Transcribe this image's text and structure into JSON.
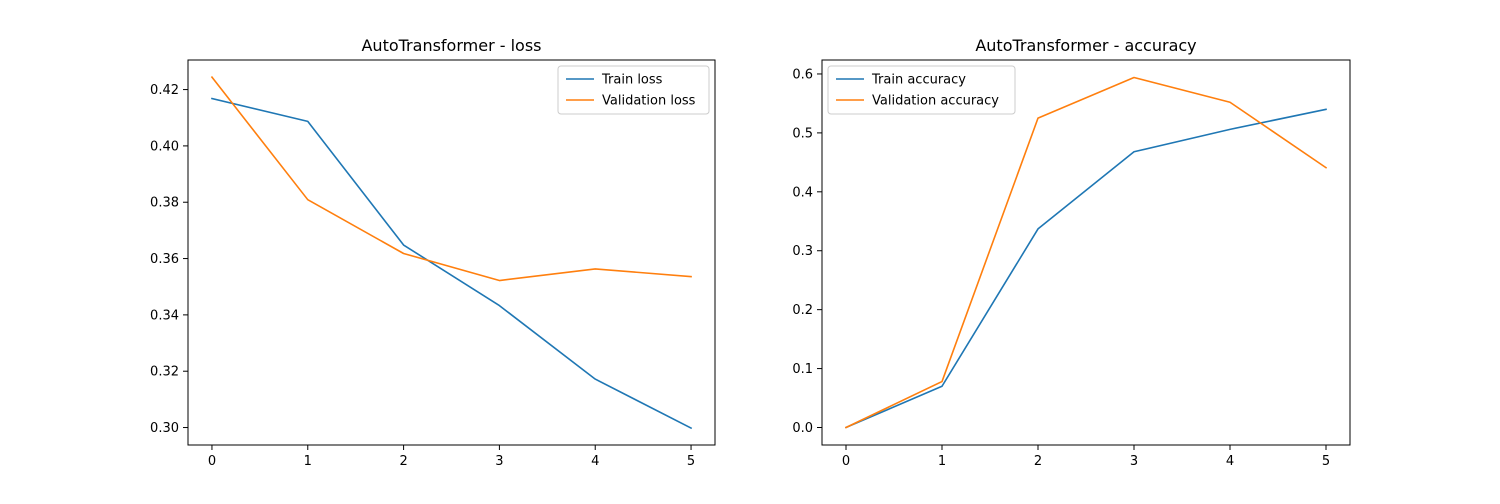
{
  "chart_data": [
    {
      "type": "line",
      "title": "AutoTransformer - loss",
      "xlabel": "",
      "ylabel": "",
      "x": [
        0,
        1,
        2,
        3,
        4,
        5
      ],
      "xlim": [
        -0.25,
        5.25
      ],
      "ylim": [
        0.2938,
        0.4305
      ],
      "xticks": [
        0,
        1,
        2,
        3,
        4,
        5
      ],
      "yticks": [
        0.3,
        0.32,
        0.34,
        0.36,
        0.38,
        0.4,
        0.42
      ],
      "ytick_labels": [
        "0.30",
        "0.32",
        "0.34",
        "0.36",
        "0.38",
        "0.40",
        "0.42"
      ],
      "grid": false,
      "legend_position": "top-right",
      "series": [
        {
          "name": "Train loss",
          "color": "#1f77b4",
          "values": [
            0.4168,
            0.4087,
            0.3648,
            0.3433,
            0.3172,
            0.2998
          ]
        },
        {
          "name": "Validation loss",
          "color": "#ff7f0e",
          "values": [
            0.4244,
            0.3809,
            0.3618,
            0.3522,
            0.3563,
            0.3536
          ]
        }
      ]
    },
    {
      "type": "line",
      "title": "AutoTransformer - accuracy",
      "xlabel": "",
      "ylabel": "",
      "x": [
        0,
        1,
        2,
        3,
        4,
        5
      ],
      "xlim": [
        -0.25,
        5.25
      ],
      "ylim": [
        -0.0297,
        0.6237
      ],
      "xticks": [
        0,
        1,
        2,
        3,
        4,
        5
      ],
      "yticks": [
        0.0,
        0.1,
        0.2,
        0.3,
        0.4,
        0.5,
        0.6
      ],
      "ytick_labels": [
        "0.0",
        "0.1",
        "0.2",
        "0.3",
        "0.4",
        "0.5",
        "0.6"
      ],
      "grid": false,
      "legend_position": "top-left",
      "series": [
        {
          "name": "Train accuracy",
          "color": "#1f77b4",
          "values": [
            0.0,
            0.07,
            0.337,
            0.468,
            0.506,
            0.54
          ]
        },
        {
          "name": "Validation accuracy",
          "color": "#ff7f0e",
          "values": [
            0.0,
            0.078,
            0.525,
            0.594,
            0.552,
            0.441
          ]
        }
      ]
    }
  ]
}
